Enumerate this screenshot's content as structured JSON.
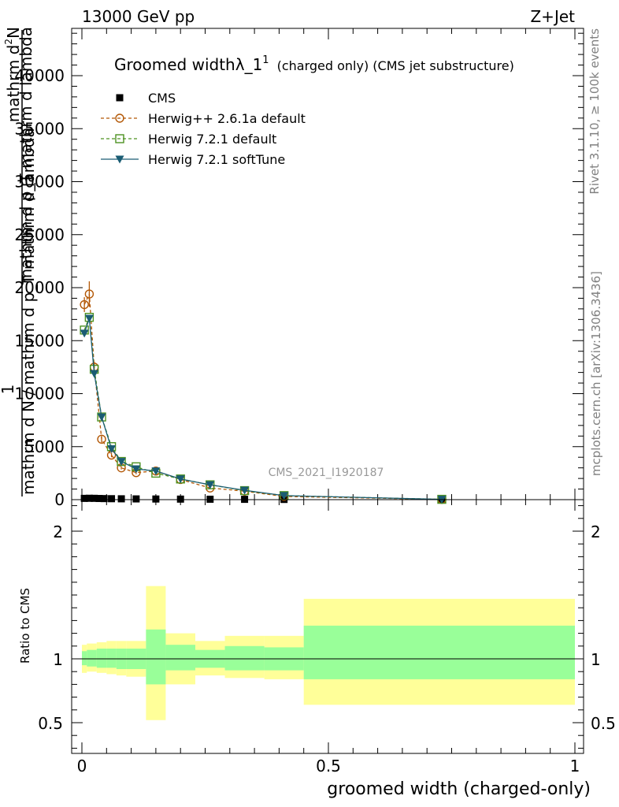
{
  "header": {
    "left_label": "13000 GeV pp",
    "right_label": "Z+Jet"
  },
  "side_labels": {
    "rivet": "Rivet 3.1.10, ≥ 100k events",
    "mcplots": "mcplots.cern.ch [arXiv:1306.3436]"
  },
  "watermark": "CMS_2021_I1920187",
  "colors": {
    "cms": "#000000",
    "herwig_261a": "#b35806",
    "herwig_721": "#4d9221",
    "herwig_soft": "#1a5c73",
    "band_outer": "#ffff99",
    "band_inner": "#99ff99"
  },
  "chart_data": [
    {
      "type": "line",
      "panel": "main",
      "title_main": "Groomed width",
      "title_lambda": "λ_1",
      "title_sup": "1",
      "title_rest": "(charged only) (CMS jet substructure)",
      "ylabel_num_lhs": "1",
      "ylabel_num_rhs": "mathrm d",
      "ylabel_num_sup": "2",
      "ylabel_num_n": "N",
      "ylabel_den": "mathrm d N / mathrm d p_T mathrm d lambda",
      "ylabel_overlay": "mathrm d p_T mathrm d lambda",
      "xlim": [
        0,
        1
      ],
      "ylim": [
        0,
        44000
      ],
      "yticks": [
        {
          "v": 0,
          "label": "0"
        },
        {
          "v": 5000,
          "label": "5000"
        },
        {
          "v": 10000,
          "label": "10000"
        },
        {
          "v": 15000,
          "label": "15000"
        },
        {
          "v": 20000,
          "label": "20000"
        },
        {
          "v": 25000,
          "label": "25000"
        },
        {
          "v": 30000,
          "label": "30000"
        },
        {
          "v": 35000,
          "label": "35000"
        },
        {
          "v": 40000,
          "label": "40000"
        }
      ],
      "legend_position": "top-left",
      "series": [
        {
          "name": "CMS",
          "marker": "square",
          "x": [
            0.005,
            0.015,
            0.025,
            0.035,
            0.045,
            0.06,
            0.08,
            0.11,
            0.15,
            0.2,
            0.26,
            0.33,
            0.41,
            0.73
          ],
          "y": [
            120,
            130,
            125,
            110,
            100,
            90,
            80,
            70,
            60,
            50,
            40,
            30,
            20,
            5
          ]
        },
        {
          "name": "Herwig++ 2.6.1a default",
          "marker": "circle-open",
          "x": [
            0.005,
            0.015,
            0.025,
            0.04,
            0.06,
            0.08,
            0.11,
            0.15,
            0.2,
            0.26,
            0.33,
            0.41,
            0.73
          ],
          "y": [
            18400,
            19400,
            12500,
            5700,
            4200,
            3000,
            2550,
            2700,
            1900,
            1100,
            800,
            300,
            25
          ],
          "yerr": [
            700,
            1200,
            500,
            300,
            200,
            150,
            150,
            150,
            100,
            80,
            60,
            40,
            10
          ]
        },
        {
          "name": "Herwig 7.2.1 default",
          "marker": "square-open",
          "x": [
            0.005,
            0.015,
            0.025,
            0.04,
            0.06,
            0.08,
            0.11,
            0.15,
            0.2,
            0.26,
            0.33,
            0.41,
            0.73
          ],
          "y": [
            16000,
            17200,
            12300,
            7800,
            5000,
            3600,
            3100,
            2500,
            1950,
            1400,
            850,
            380,
            30
          ]
        },
        {
          "name": "Herwig 7.2.1 softTune",
          "marker": "triangle-down",
          "x": [
            0.005,
            0.015,
            0.025,
            0.04,
            0.06,
            0.08,
            0.11,
            0.15,
            0.2,
            0.26,
            0.33,
            0.41,
            0.73
          ],
          "y": [
            15700,
            17100,
            11900,
            7800,
            4800,
            3600,
            2900,
            2700,
            1950,
            1400,
            880,
            380,
            30
          ]
        }
      ]
    },
    {
      "type": "band",
      "panel": "ratio",
      "ylabel": "Ratio to CMS",
      "xlabel": "groomed width (charged-only)",
      "xlim": [
        0,
        1
      ],
      "ylim": [
        0.25,
        2.25
      ],
      "yticks": [
        {
          "v": 0.5,
          "label": "0.5"
        },
        {
          "v": 1,
          "label": "1"
        },
        {
          "v": 2,
          "label": "2"
        }
      ],
      "xticks": [
        {
          "v": 0,
          "label": "0"
        },
        {
          "v": 0.5,
          "label": "0.5"
        },
        {
          "v": 1,
          "label": "1"
        }
      ],
      "bins": [
        {
          "x0": 0.0,
          "x1": 0.01,
          "outer": [
            0.89,
            1.11
          ],
          "inner": [
            0.95,
            1.06
          ]
        },
        {
          "x0": 0.01,
          "x1": 0.03,
          "outer": [
            0.9,
            1.12
          ],
          "inner": [
            0.94,
            1.07
          ]
        },
        {
          "x0": 0.03,
          "x1": 0.05,
          "outer": [
            0.89,
            1.13
          ],
          "inner": [
            0.93,
            1.08
          ]
        },
        {
          "x0": 0.05,
          "x1": 0.07,
          "outer": [
            0.88,
            1.14
          ],
          "inner": [
            0.93,
            1.08
          ]
        },
        {
          "x0": 0.07,
          "x1": 0.09,
          "outer": [
            0.87,
            1.14
          ],
          "inner": [
            0.92,
            1.08
          ]
        },
        {
          "x0": 0.09,
          "x1": 0.13,
          "outer": [
            0.86,
            1.14
          ],
          "inner": [
            0.92,
            1.08
          ]
        },
        {
          "x0": 0.13,
          "x1": 0.17,
          "outer": [
            0.52,
            1.57
          ],
          "inner": [
            0.8,
            1.23
          ]
        },
        {
          "x0": 0.17,
          "x1": 0.23,
          "outer": [
            0.8,
            1.2
          ],
          "inner": [
            0.91,
            1.11
          ]
        },
        {
          "x0": 0.23,
          "x1": 0.29,
          "outer": [
            0.87,
            1.14
          ],
          "inner": [
            0.93,
            1.07
          ]
        },
        {
          "x0": 0.29,
          "x1": 0.37,
          "outer": [
            0.85,
            1.18
          ],
          "inner": [
            0.91,
            1.1
          ]
        },
        {
          "x0": 0.37,
          "x1": 0.45,
          "outer": [
            0.84,
            1.18
          ],
          "inner": [
            0.91,
            1.09
          ]
        },
        {
          "x0": 0.45,
          "x1": 1.0,
          "outer": [
            0.64,
            1.47
          ],
          "inner": [
            0.84,
            1.26
          ]
        }
      ]
    }
  ]
}
